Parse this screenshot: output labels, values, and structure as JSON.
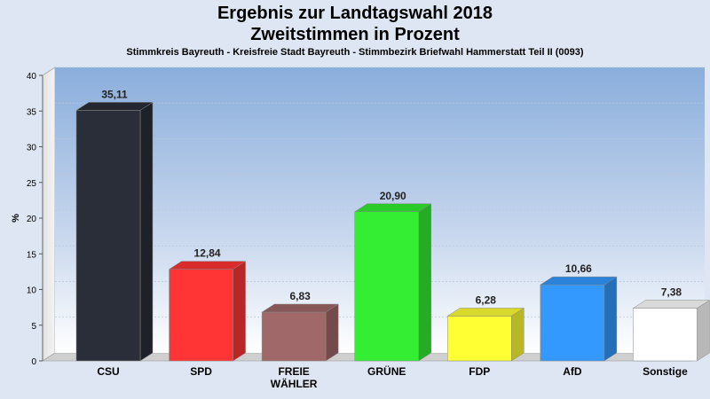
{
  "header": {
    "title": "Ergebnis zur Landtagswahl 2018",
    "subtitle": "Zweitstimmen in Prozent",
    "caption": "Stimmkreis Bayreuth - Kreisfreie Stadt Bayreuth - Stimmbezirk Briefwahl Hammerstatt Teil II (0093)"
  },
  "chart_data": {
    "type": "bar",
    "title": "Ergebnis zur Landtagswahl 2018",
    "subtitle": "Zweitstimmen in Prozent",
    "ylabel": "%",
    "xlabel": "",
    "ylim": [
      0,
      40
    ],
    "yticks": [
      0,
      5,
      10,
      15,
      20,
      25,
      30,
      35,
      40
    ],
    "grid": true,
    "categories": [
      "CSU",
      "SPD",
      "FREIE WÄHLER",
      "GRÜNE",
      "FDP",
      "AfD",
      "Sonstige"
    ],
    "category_label_lines": [
      [
        "CSU"
      ],
      [
        "SPD"
      ],
      [
        "FREIE",
        "WÄHLER"
      ],
      [
        "GRÜNE"
      ],
      [
        "FDP"
      ],
      [
        "AfD"
      ],
      [
        "Sonstige"
      ]
    ],
    "values": [
      35.11,
      12.84,
      6.83,
      20.9,
      6.28,
      10.66,
      7.38
    ],
    "value_labels": [
      "35,11",
      "12,84",
      "6,83",
      "20,90",
      "6,28",
      "10,66",
      "7,38"
    ],
    "colors": [
      "#2a2e38",
      "#ff3535",
      "#a06868",
      "#33ee33",
      "#ffff33",
      "#3399ff",
      "#ffffff"
    ]
  }
}
